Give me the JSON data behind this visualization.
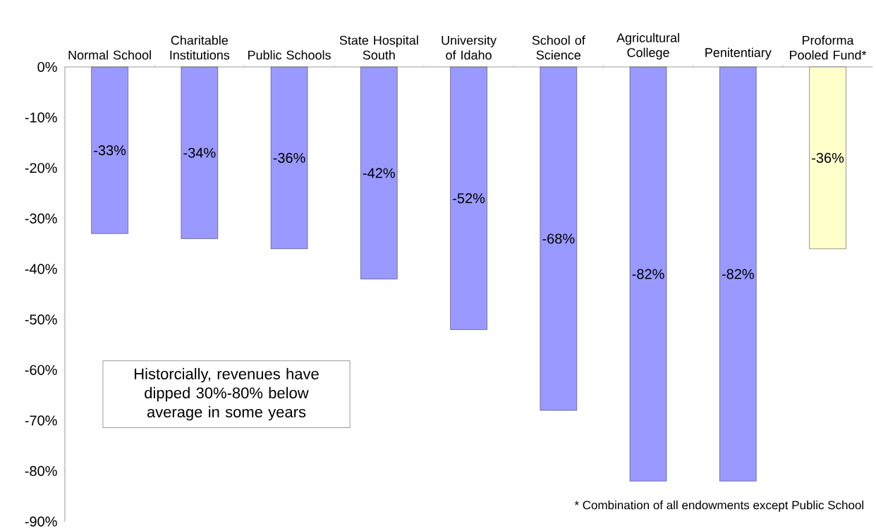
{
  "chart_data": {
    "type": "bar",
    "categories": [
      "Normal School",
      "Charitable Institutions",
      "Public Schools",
      "State Hospital South",
      "University of Idaho",
      "School of Science",
      "Agricultural College",
      "Penitentiary",
      "Proforma Pooled Fund*"
    ],
    "values": [
      -33,
      -34,
      -36,
      -42,
      -52,
      -68,
      -82,
      -82,
      -36
    ],
    "value_labels": [
      "-33%",
      "-34%",
      "-36%",
      "-42%",
      "-52%",
      "-68%",
      "-82%",
      "-82%",
      "-36%"
    ],
    "colors": [
      "#9999ff",
      "#9999ff",
      "#9999ff",
      "#9999ff",
      "#9999ff",
      "#9999ff",
      "#9999ff",
      "#9999ff",
      "#ffffcc"
    ],
    "ylim": [
      -90,
      0
    ],
    "yticks": [
      {
        "value": 0,
        "label": "0%"
      },
      {
        "value": -10,
        "label": "-10%"
      },
      {
        "value": -20,
        "label": "-20%"
      },
      {
        "value": -30,
        "label": "-30%"
      },
      {
        "value": -40,
        "label": "-40%"
      },
      {
        "value": -50,
        "label": "-50%"
      },
      {
        "value": -60,
        "label": "-60%"
      },
      {
        "value": -70,
        "label": "-70%"
      },
      {
        "value": -80,
        "label": "-80%"
      },
      {
        "value": -90,
        "label": "-90%"
      }
    ],
    "annotations": [
      "Historcially, revenues have dipped 30%-80% below average in some years",
      "* Combination of all endowments except Public School"
    ]
  }
}
